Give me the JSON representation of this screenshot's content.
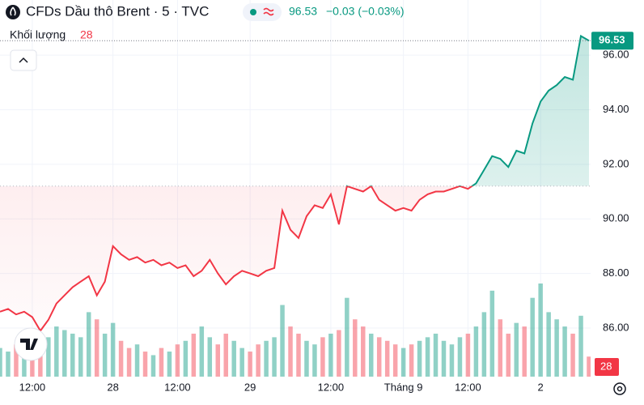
{
  "chart_data": {
    "type": "baseline",
    "title": "CFDs Dầu thô Brent · 5 · TVC",
    "change_label": "−0.03 (−0.03%)",
    "baseline": 91.2,
    "color_up": "#089981",
    "color_down": "#f23645",
    "x": [
      0,
      1,
      2,
      3,
      4,
      5,
      6,
      7,
      8,
      9,
      10,
      11,
      12,
      13,
      14,
      15,
      16,
      17,
      18,
      19,
      20,
      21,
      22,
      23,
      24,
      25,
      26,
      27,
      28,
      29,
      30,
      31,
      32,
      33,
      34,
      35,
      36,
      37,
      38,
      39,
      40,
      41,
      42,
      43,
      44,
      45,
      46,
      47,
      48,
      49,
      50,
      51,
      52,
      53,
      54,
      55,
      56,
      57,
      58,
      59,
      60,
      61,
      62,
      63,
      64,
      65,
      66,
      67,
      68,
      69,
      70,
      71,
      72,
      73
    ],
    "xlim": [
      0,
      73.2
    ],
    "xticks": [
      {
        "value": 4,
        "label": "12:00"
      },
      {
        "value": 14,
        "label": "28"
      },
      {
        "value": 22,
        "label": "12:00"
      },
      {
        "value": 31,
        "label": "29"
      },
      {
        "value": 41,
        "label": "12:00"
      },
      {
        "value": 50,
        "label": "Tháng 9"
      },
      {
        "value": 58,
        "label": "12:00"
      },
      {
        "value": 67,
        "label": "2"
      }
    ],
    "ylim": [
      84.22,
      98.02
    ],
    "yticks": [
      {
        "value": 86,
        "label": "86.00"
      },
      {
        "value": 88,
        "label": "88.00"
      },
      {
        "value": 90,
        "label": "90.00"
      },
      {
        "value": 92,
        "label": "92.00"
      },
      {
        "value": 94,
        "label": "94.00"
      },
      {
        "value": 96,
        "label": "96.00"
      }
    ],
    "grid": true,
    "series": [
      {
        "values": [
          86.6,
          86.7,
          86.5,
          86.6,
          86.4,
          85.9,
          86.3,
          86.9,
          87.2,
          87.5,
          87.7,
          87.9,
          87.2,
          87.7,
          89.0,
          88.7,
          88.5,
          88.6,
          88.4,
          88.5,
          88.3,
          88.4,
          88.2,
          88.3,
          87.9,
          88.1,
          88.5,
          88.0,
          87.6,
          87.9,
          88.1,
          88.0,
          87.9,
          88.1,
          88.2,
          90.3,
          89.6,
          89.3,
          90.1,
          90.5,
          90.4,
          90.9,
          89.8,
          91.2,
          91.1,
          91.0,
          91.2,
          90.7,
          90.5,
          90.3,
          90.4,
          90.3,
          90.7,
          90.9,
          91.0,
          91.0,
          91.1,
          91.2,
          91.1,
          91.3,
          91.8,
          92.3,
          92.2,
          91.9,
          92.5,
          92.4,
          93.5,
          94.3,
          94.7,
          94.9,
          95.2,
          95.1,
          96.7,
          96.53
        ]
      },
      {
        "name": "Khối lượng",
        "values": [
          40,
          35,
          45,
          30,
          50,
          60,
          55,
          70,
          65,
          60,
          55,
          90,
          80,
          60,
          75,
          50,
          40,
          45,
          35,
          30,
          40,
          35,
          45,
          50,
          60,
          70,
          55,
          45,
          60,
          50,
          40,
          35,
          45,
          50,
          55,
          100,
          70,
          60,
          50,
          45,
          55,
          60,
          65,
          110,
          80,
          70,
          60,
          55,
          50,
          45,
          40,
          45,
          50,
          55,
          60,
          50,
          45,
          55,
          60,
          70,
          90,
          120,
          80,
          60,
          75,
          70,
          110,
          130,
          90,
          80,
          70,
          60,
          85,
          28
        ]
      }
    ]
  }
}
